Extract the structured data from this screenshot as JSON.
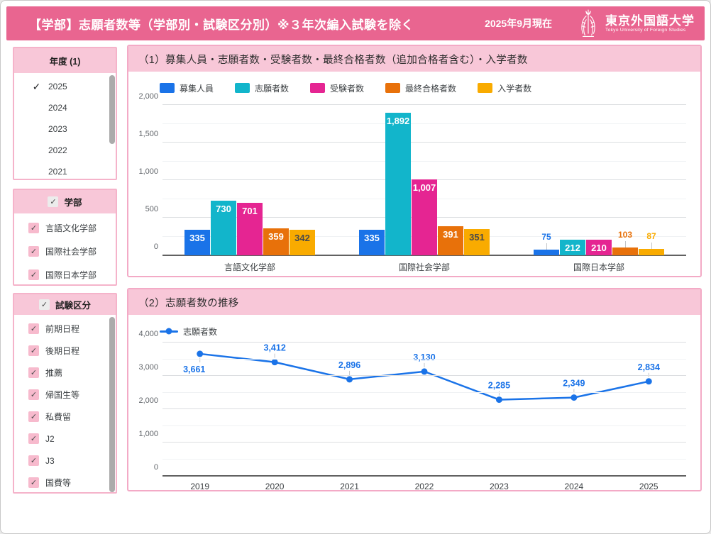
{
  "header": {
    "title": "【学部】志願者数等（学部別・試験区分別）※３年次編入試験を除く",
    "date_note": "2025年9月現在",
    "logo_jp": "東京外国語大学",
    "logo_en": "Tokyo University of Foreign Studies"
  },
  "colors": {
    "header_pink": "#e96590",
    "band_pink": "#f8c7d8",
    "card_border_pink": "#f3aac6",
    "checkbox_pink": "#f7bacd",
    "axis_text": "#5f6368"
  },
  "sidebar": {
    "year_filter": {
      "title": "年度 (1)",
      "items": [
        {
          "label": "2025",
          "checked": true
        },
        {
          "label": "2024",
          "checked": false
        },
        {
          "label": "2023",
          "checked": false
        },
        {
          "label": "2022",
          "checked": false
        },
        {
          "label": "2021",
          "checked": false
        }
      ]
    },
    "faculty_filter": {
      "title": "学部",
      "all_checked": true,
      "items": [
        "言語文化学部",
        "国際社会学部",
        "国際日本学部"
      ]
    },
    "exam_filter": {
      "title": "試験区分",
      "all_checked": true,
      "items": [
        "前期日程",
        "後期日程",
        "推薦",
        "帰国生等",
        "私費留",
        "J2",
        "J3",
        "国費等"
      ]
    }
  },
  "chart_data": [
    {
      "type": "bar",
      "title": "（1）募集人員・志願者数・受験者数・最終合格者数（追加合格者含む）・入学者数",
      "categories": [
        "言語文化学部",
        "国際社会学部",
        "国際日本学部"
      ],
      "series": [
        {
          "name": "募集人員",
          "color": "#1a73e8",
          "label_color": "#ffffff",
          "values": [
            335,
            335,
            75
          ]
        },
        {
          "name": "志願者数",
          "color": "#12b5cb",
          "label_color": "#ffffff",
          "values": [
            730,
            1892,
            212
          ]
        },
        {
          "name": "受験者数",
          "color": "#e52592",
          "label_color": "#ffffff",
          "values": [
            701,
            1007,
            210
          ]
        },
        {
          "name": "最終合格者数",
          "color": "#e8710a",
          "label_color": "#ffffff",
          "values": [
            359,
            391,
            103
          ]
        },
        {
          "name": "入学者数",
          "color": "#f9ab00",
          "label_color": "#4a4a4a",
          "values": [
            342,
            351,
            87
          ]
        }
      ],
      "ylim": [
        0,
        2000
      ],
      "yticks": [
        0,
        500,
        1000,
        1500,
        2000
      ],
      "minor_step": 250,
      "grid": true,
      "legend_position": "top"
    },
    {
      "type": "line",
      "title": "（2）志願者数の推移",
      "series_name": "志願者数",
      "color": "#1a73e8",
      "x": [
        "2019",
        "2020",
        "2021",
        "2022",
        "2023",
        "2024",
        "2025"
      ],
      "values": [
        3661,
        3412,
        2896,
        3130,
        2285,
        2349,
        2834
      ],
      "ylim": [
        0,
        4000
      ],
      "yticks": [
        0,
        1000,
        2000,
        3000,
        4000
      ],
      "minor_step": 500,
      "grid": true,
      "legend_position": "top",
      "label_positions": [
        "below",
        "above",
        "above",
        "above",
        "above",
        "above",
        "above"
      ]
    }
  ]
}
